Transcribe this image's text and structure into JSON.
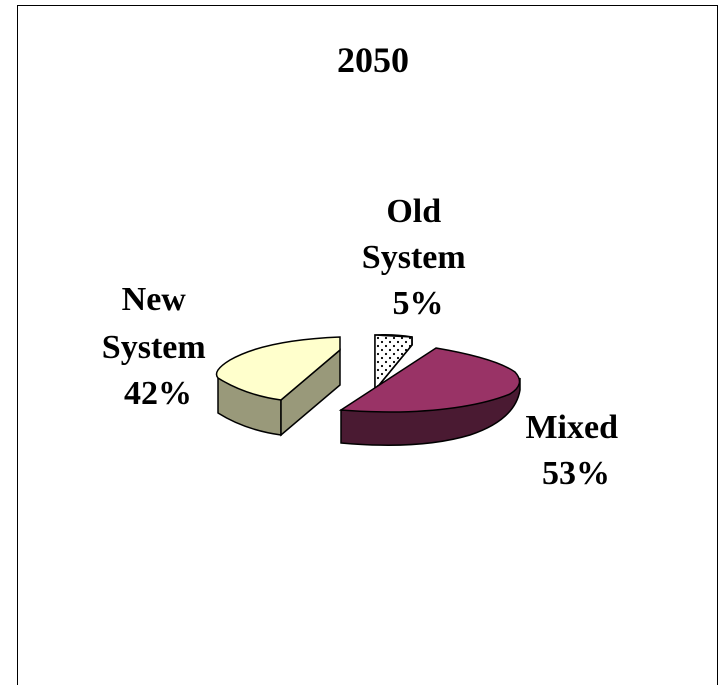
{
  "chart_data": {
    "type": "pie",
    "title": "2050",
    "style": "3d-exploded",
    "slices": [
      {
        "label_lines": [
          "Old",
          "System",
          "5%"
        ],
        "value": 5,
        "pattern": "dotted-hatched"
      },
      {
        "label_lines": [
          "Mixed",
          "53%"
        ],
        "value": 53,
        "color": "#993366",
        "side": "#4a1a32"
      },
      {
        "label_lines": [
          "New",
          "System",
          "42%"
        ],
        "value": 42,
        "color": "#ffffcc",
        "side": "#99997a"
      }
    ]
  }
}
